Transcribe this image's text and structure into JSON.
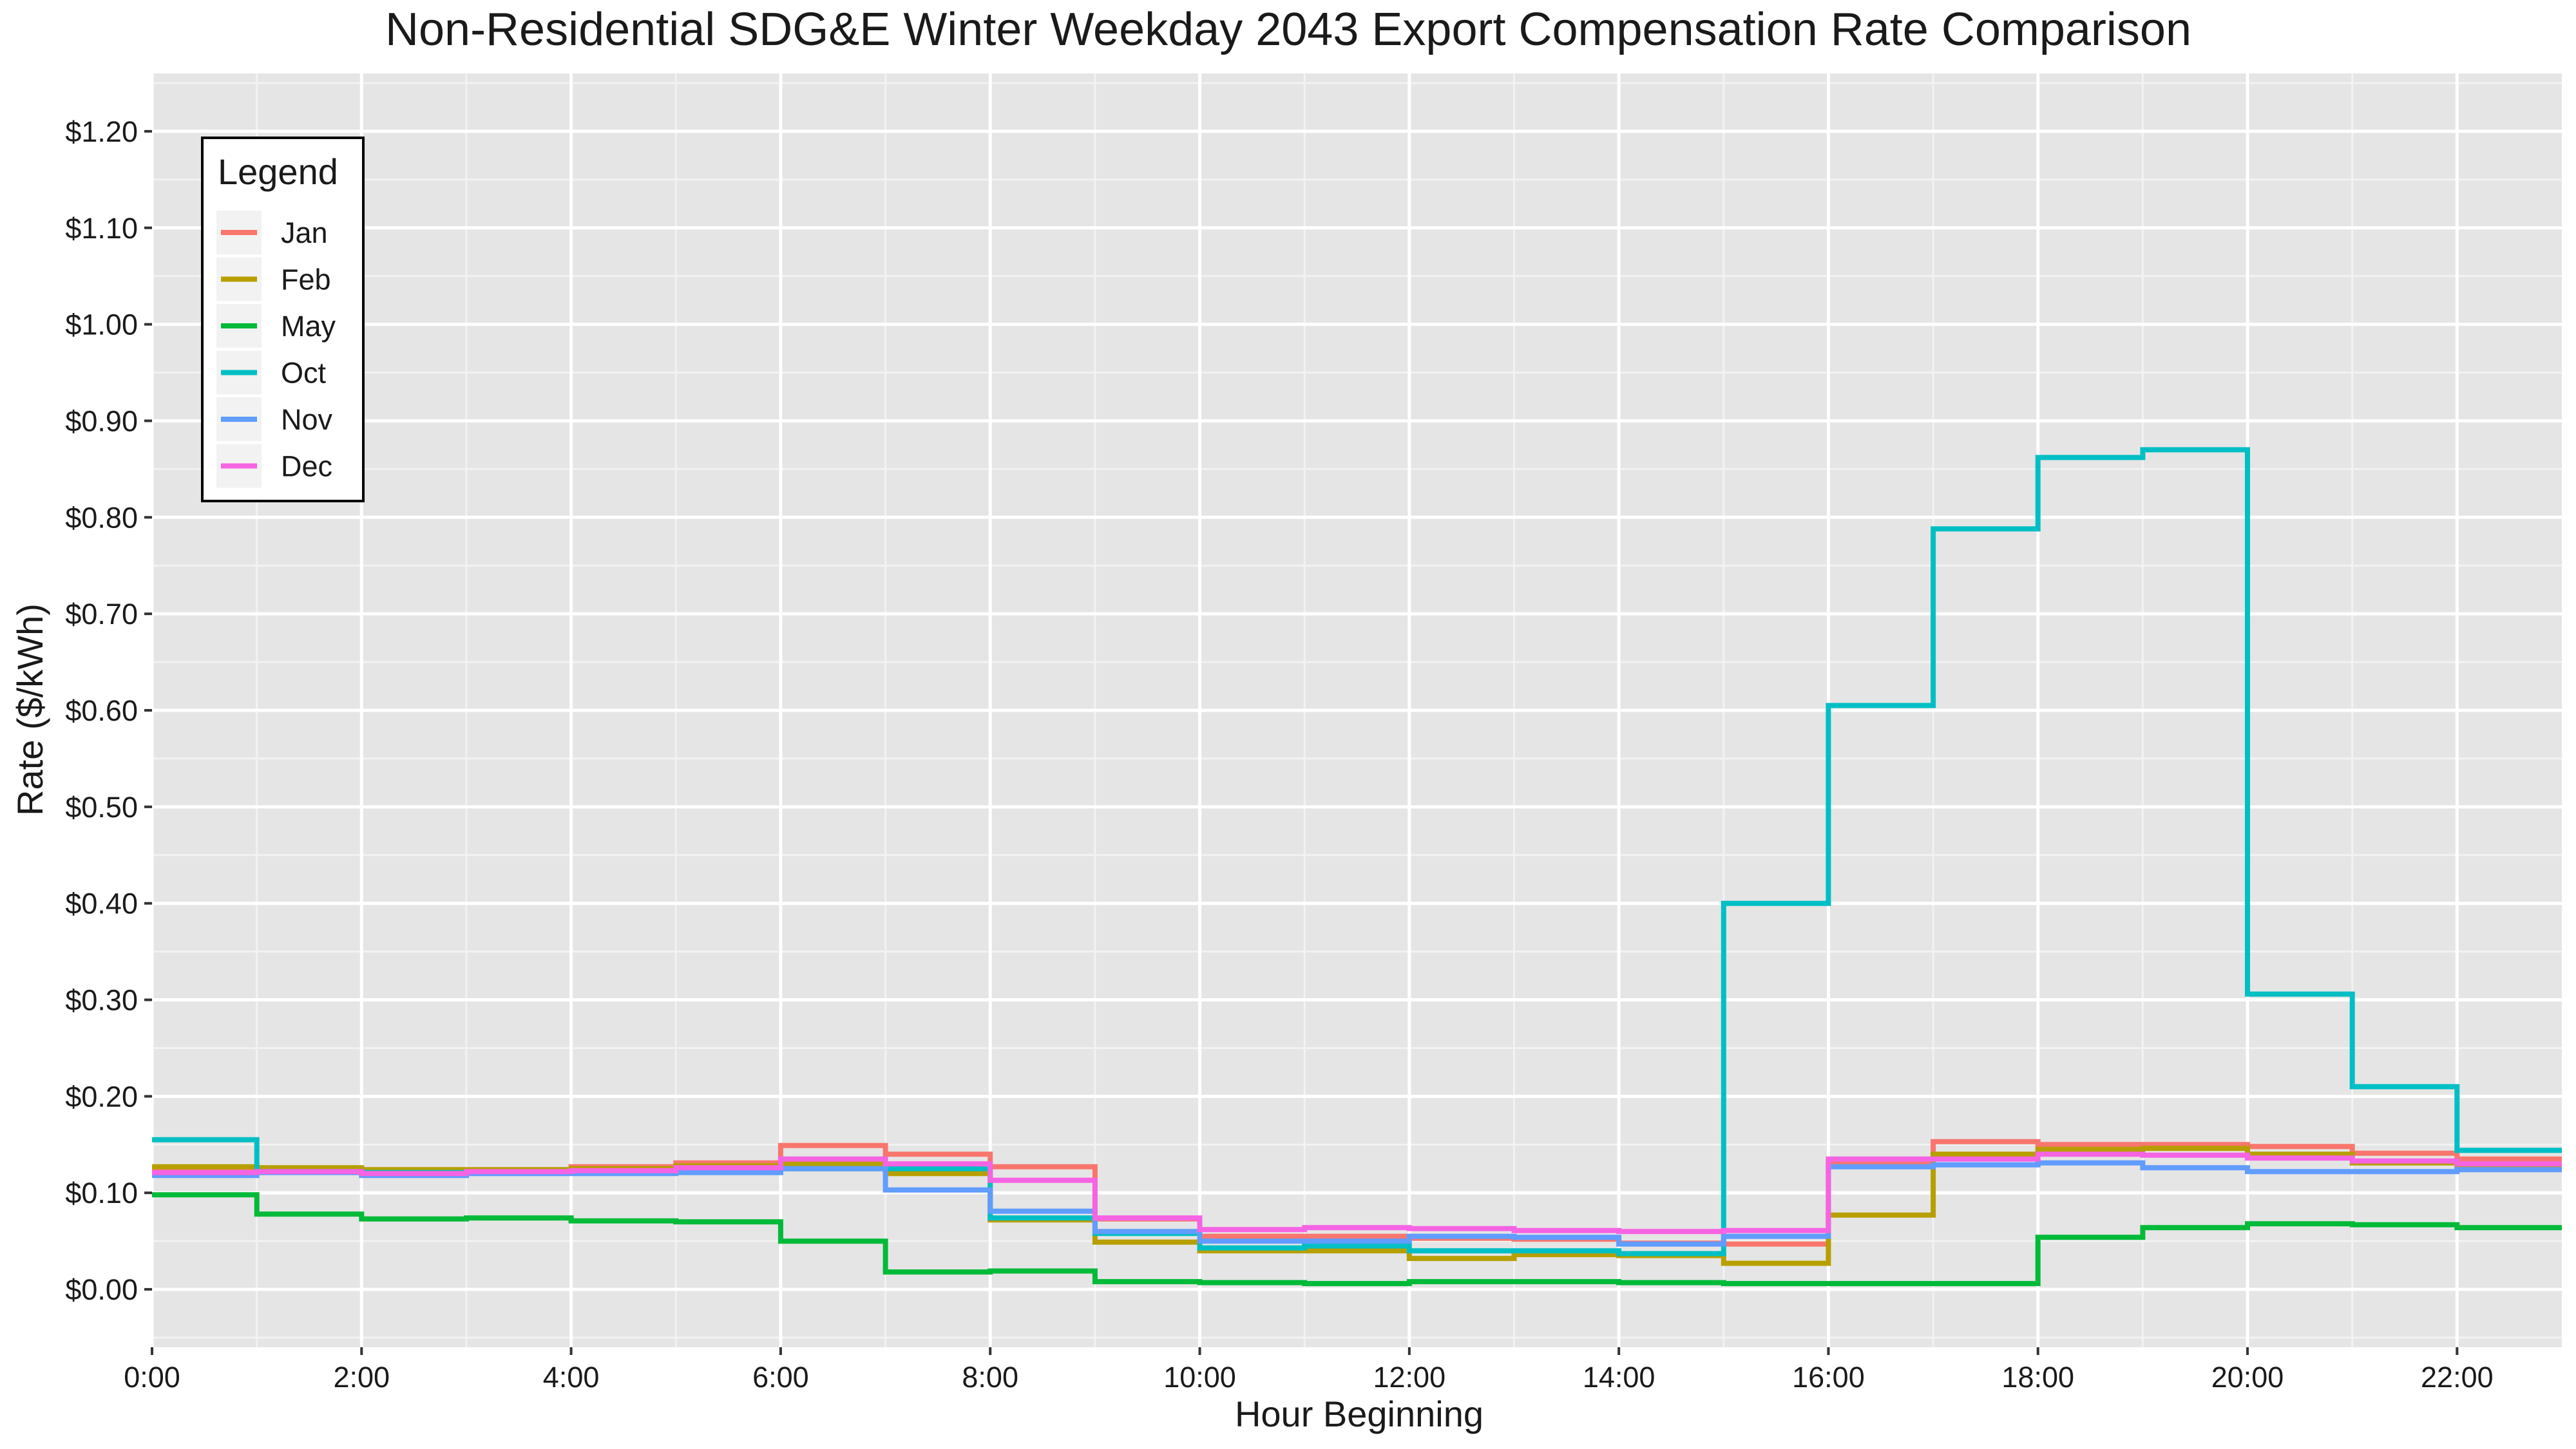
{
  "chart_data": {
    "type": "line",
    "step": "post",
    "title": "Non-Residential SDG&E Winter Weekday 2043 Export Compensation Rate Comparison",
    "xlabel": "Hour Beginning",
    "ylabel": "Rate ($/kWh)",
    "xlim": [
      0,
      23
    ],
    "ylim": [
      -0.06,
      1.26
    ],
    "x": [
      0,
      1,
      2,
      3,
      4,
      5,
      6,
      7,
      8,
      9,
      10,
      11,
      12,
      13,
      14,
      15,
      16,
      17,
      18,
      19,
      20,
      21,
      22,
      23
    ],
    "x_ticks": [
      0,
      2,
      4,
      6,
      8,
      10,
      12,
      14,
      16,
      18,
      20,
      22
    ],
    "x_tick_labels": [
      "0:00",
      "2:00",
      "4:00",
      "6:00",
      "8:00",
      "10:00",
      "12:00",
      "14:00",
      "16:00",
      "18:00",
      "20:00",
      "22:00"
    ],
    "y_ticks": [
      0,
      0.1,
      0.2,
      0.3,
      0.4,
      0.5,
      0.6,
      0.7,
      0.8,
      0.9,
      1.0,
      1.1,
      1.2
    ],
    "y_tick_labels": [
      "$0.00",
      "$0.10",
      "$0.20",
      "$0.30",
      "$0.40",
      "$0.50",
      "$0.60",
      "$0.70",
      "$0.80",
      "$0.90",
      "$1.00",
      "$1.10",
      "$1.20"
    ],
    "legend": {
      "title": "Legend",
      "position": "top-left"
    },
    "series": [
      {
        "name": "Jan",
        "color": "#F8766D",
        "values": [
          0.125,
          0.125,
          0.123,
          0.123,
          0.127,
          0.131,
          0.149,
          0.14,
          0.127,
          0.073,
          0.055,
          0.055,
          0.053,
          0.052,
          0.048,
          0.047,
          0.131,
          0.153,
          0.15,
          0.15,
          0.148,
          0.141,
          0.135,
          0.135
        ]
      },
      {
        "name": "Feb",
        "color": "#B79F00",
        "values": [
          0.127,
          0.126,
          0.124,
          0.124,
          0.125,
          0.128,
          0.13,
          0.12,
          0.072,
          0.049,
          0.04,
          0.04,
          0.032,
          0.036,
          0.035,
          0.027,
          0.077,
          0.14,
          0.145,
          0.146,
          0.14,
          0.131,
          0.128,
          0.128
        ]
      },
      {
        "name": "May",
        "color": "#00BA38",
        "values": [
          0.098,
          0.078,
          0.073,
          0.074,
          0.071,
          0.07,
          0.05,
          0.018,
          0.019,
          0.008,
          0.007,
          0.006,
          0.008,
          0.008,
          0.007,
          0.006,
          0.006,
          0.006,
          0.054,
          0.064,
          0.068,
          0.067,
          0.064,
          0.064
        ]
      },
      {
        "name": "Oct",
        "color": "#00BFC4",
        "values": [
          0.155,
          0.122,
          0.121,
          0.121,
          0.121,
          0.122,
          0.125,
          0.125,
          0.074,
          0.058,
          0.043,
          0.045,
          0.04,
          0.04,
          0.037,
          0.4,
          0.605,
          0.788,
          0.862,
          0.87,
          0.306,
          0.21,
          0.144,
          0.144
        ]
      },
      {
        "name": "Nov",
        "color": "#619CFF",
        "values": [
          0.118,
          0.121,
          0.118,
          0.12,
          0.12,
          0.121,
          0.125,
          0.103,
          0.081,
          0.06,
          0.05,
          0.05,
          0.055,
          0.054,
          0.047,
          0.055,
          0.127,
          0.129,
          0.131,
          0.126,
          0.122,
          0.122,
          0.124,
          0.124
        ]
      },
      {
        "name": "Dec",
        "color": "#F564E3",
        "values": [
          0.121,
          0.122,
          0.12,
          0.122,
          0.123,
          0.126,
          0.135,
          0.13,
          0.113,
          0.074,
          0.062,
          0.064,
          0.063,
          0.061,
          0.06,
          0.061,
          0.135,
          0.135,
          0.14,
          0.139,
          0.136,
          0.133,
          0.13,
          0.13
        ]
      }
    ]
  }
}
